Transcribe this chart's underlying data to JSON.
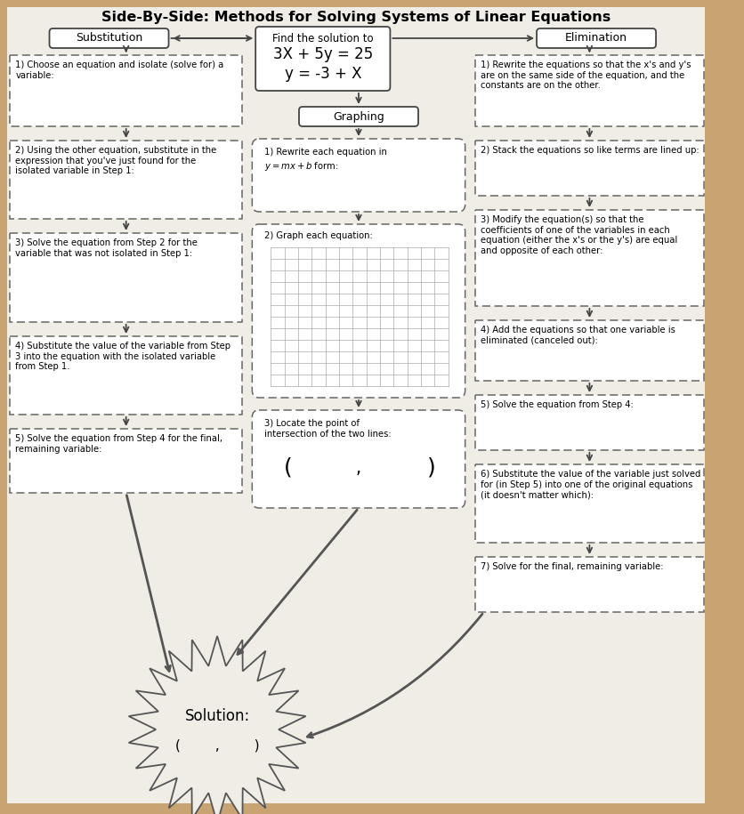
{
  "title": "Side-By-Side: Methods for Solving Systems of Linear Equations",
  "bg_color": "#c8a472",
  "paper_color": "#f0ede6",
  "title_fontsize": 11.5,
  "body_fontsize": 7.2,
  "header_fontsize": 9,
  "center_eq1": "3X + 5y = 25",
  "center_eq2": "y = -3 + X",
  "substitution_header": "Substitution",
  "elimination_header": "Elimination",
  "find_solution": "Find the solution to",
  "graphing_header": "Graphing",
  "sub_steps": [
    "1) Choose an equation and isolate (solve for) a\nvariable:",
    "2) Using the other equation, substitute in the\nexpression that you've just found for the\nisolated variable in Step 1:",
    "3) Solve the equation from Step 2 for the\nvariable that was not isolated in Step 1:",
    "4) Substitute the value of the variable from Step\n3 into the equation with the isolated variable\nfrom Step 1.",
    "5) Solve the equation from Step 4 for the final,\nremaining variable:"
  ],
  "elim_steps": [
    "1) Rewrite the equations so that the x's and y's\nare on the same side of the equation, and the\nconstants are on the other.",
    "2) Stack the equations so like terms are lined up:",
    "3) Modify the equation(s) so that the\ncoefficients of one of the variables in each\nequation (either the x's or the y's) are equal\nand opposite of each other:",
    "4) Add the equations so that one variable is\neliminated (canceled out):",
    "5) Solve the equation from Step 4:",
    "6) Substitute the value of the variable just solved\nfor (in Step 5) into one of the original equations\n(it doesn't matter which):",
    "7) Solve for the final, remaining variable:"
  ],
  "graph_steps": [
    "1) Rewrite each equation in\ny = mx + b form:",
    "2) Graph each equation:",
    "3) Locate the point of\nintersection of the two lines:"
  ],
  "solution_text": "Solution:",
  "arrow_color": "#444444"
}
